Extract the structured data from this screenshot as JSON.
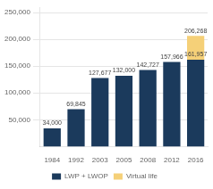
{
  "chart_data": {
    "type": "bar",
    "stacked": true,
    "categories": [
      "1984",
      "1992",
      "2003",
      "2005",
      "2008",
      "2012",
      "2016"
    ],
    "series": [
      {
        "name": "LWP + LWOP",
        "color": "#1b3a5c",
        "values": [
          34000,
          69845,
          127677,
          132000,
          142727,
          157966,
          161957
        ],
        "value_labels": [
          "34,000",
          "69,845",
          "127,677",
          "132,000",
          "142,727",
          "157,966",
          "161,957"
        ]
      },
      {
        "name": "Virtual life",
        "color": "#f5d078",
        "values": [
          0,
          0,
          0,
          0,
          0,
          0,
          44311
        ]
      }
    ],
    "data_labels": true,
    "annotations": [
      {
        "text": "206,268",
        "x": "2016",
        "y": 206268
      }
    ],
    "ylim": [
      0,
      260000
    ],
    "yticks": [
      {
        "value": 50000,
        "label": "50,000"
      },
      {
        "value": 100000,
        "label": "100,000"
      },
      {
        "value": 150000,
        "label": "150,000"
      },
      {
        "value": 200000,
        "label": "200,000"
      },
      {
        "value": 250000,
        "label": "250,000"
      }
    ],
    "grid": true,
    "legend": "bottom"
  }
}
